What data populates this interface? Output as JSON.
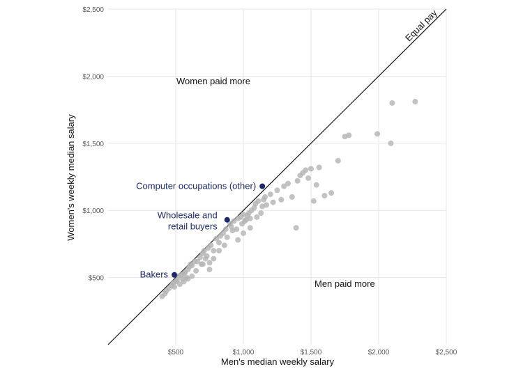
{
  "chart_data": {
    "type": "scatter",
    "xlabel": "Men's median weekly salary",
    "ylabel": "Women's weekly median salary",
    "xlim": [
      0,
      2500
    ],
    "ylim": [
      0,
      2500
    ],
    "grid": true,
    "x_ticks": [
      {
        "value": 500,
        "label": "$500"
      },
      {
        "value": 1000,
        "label": "$1,000"
      },
      {
        "value": 1500,
        "label": "$1,500"
      },
      {
        "value": 2000,
        "label": "$2,000"
      },
      {
        "value": 2500,
        "label": "$2,500"
      }
    ],
    "y_ticks": [
      {
        "value": 500,
        "label": "$500"
      },
      {
        "value": 1000,
        "label": "$1,000"
      },
      {
        "value": 1500,
        "label": "$1,500"
      },
      {
        "value": 2000,
        "label": "$2,000"
      },
      {
        "value": 2500,
        "label": "$2,500"
      }
    ],
    "reference_line": {
      "label": "Equal pay",
      "from": [
        0,
        0
      ],
      "to": [
        2500,
        2500
      ]
    },
    "region_labels": {
      "women_more": "Women paid more",
      "men_more": "Men paid more"
    },
    "colors": {
      "points": "#b3b3b3",
      "highlight": "#1b2a6b",
      "line": "#111111",
      "grid": "#e6e6e6"
    },
    "series": [
      {
        "x": [
          420,
          400,
          430,
          450,
          470,
          480,
          490,
          500,
          510,
          520,
          530,
          540,
          550,
          560,
          570,
          580,
          590,
          600,
          610,
          620,
          640,
          660,
          680,
          690,
          700,
          710,
          720,
          730,
          740,
          750,
          760,
          780,
          800,
          820,
          830,
          850,
          870,
          880,
          900,
          910,
          920,
          930,
          950,
          960,
          980,
          990,
          1000,
          1010,
          1020,
          1030,
          1040,
          1050,
          1060,
          1080,
          1090,
          1100,
          1110,
          1130,
          1140,
          1150,
          1160,
          1170,
          1200,
          1220,
          1250,
          1280,
          1300,
          1330,
          1360,
          1390,
          1400,
          1420,
          1440,
          1460,
          1480,
          1500,
          1520,
          1540,
          1560,
          1600,
          1650,
          1700,
          1750,
          1780,
          1990,
          2090,
          2100,
          2270,
          560,
          590,
          620,
          650,
          700,
          750,
          780,
          820,
          860,
          960,
          1000,
          1050
        ],
        "y": [
          380,
          360,
          400,
          420,
          440,
          460,
          430,
          470,
          480,
          510,
          450,
          520,
          490,
          530,
          540,
          500,
          560,
          580,
          600,
          590,
          620,
          620,
          650,
          600,
          680,
          700,
          640,
          660,
          720,
          610,
          740,
          700,
          790,
          760,
          810,
          830,
          860,
          800,
          900,
          880,
          850,
          920,
          860,
          940,
          950,
          900,
          970,
          920,
          930,
          960,
          980,
          940,
          1000,
          1020,
          1050,
          950,
          1070,
          980,
          1030,
          1080,
          1100,
          1040,
          1120,
          1060,
          1150,
          1080,
          1180,
          1200,
          1100,
          870,
          1220,
          1260,
          1280,
          1300,
          1240,
          1310,
          1070,
          1190,
          1320,
          1110,
          1130,
          1370,
          1550,
          1560,
          1570,
          1500,
          1800,
          1810,
          470,
          490,
          510,
          550,
          600,
          560,
          640,
          700,
          740,
          780,
          830,
          870
        ]
      }
    ],
    "highlights": [
      {
        "label": "Computer occupations (other)",
        "x": 1140,
        "y": 1180
      },
      {
        "label": "Wholesale and retail buyers",
        "x": 880,
        "y": 930
      },
      {
        "label": "Bakers",
        "x": 490,
        "y": 520
      }
    ]
  }
}
